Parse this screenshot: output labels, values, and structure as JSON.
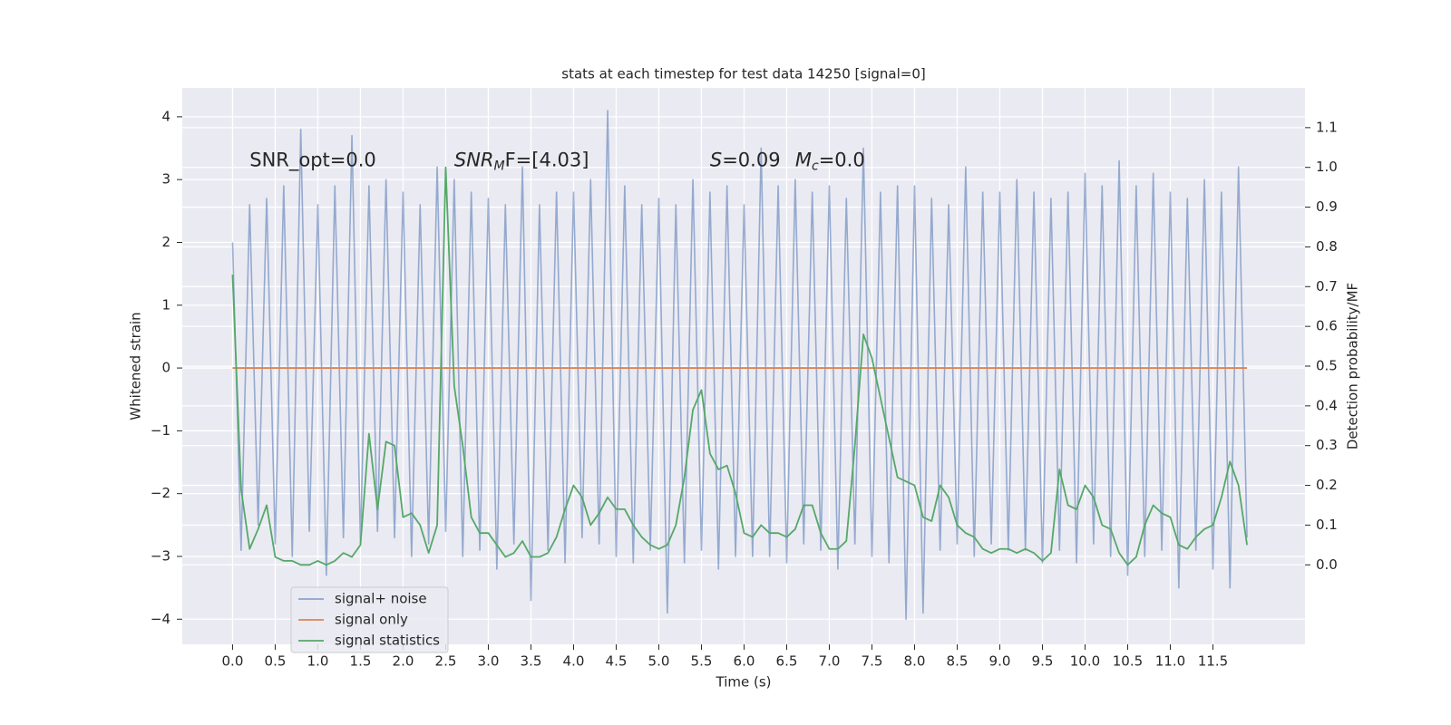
{
  "chart_data": {
    "type": "line",
    "title": "stats at each timestep for test data 14250 [signal=0]",
    "x_label": "Time (s)",
    "y_label": "Whitened strain",
    "y2_label": "Detection probability/MF",
    "annotations": [
      "SNR_opt=0.0",
      {
        "base": "SNR",
        "sub": "M",
        "after": "F=[4.03]"
      },
      {
        "base": "S",
        "after": "=0.09"
      },
      {
        "base": "M",
        "sub": "c",
        "after": "=0.0"
      }
    ],
    "xlim": [
      -0.59,
      12.58
    ],
    "ylim": [
      -4.4,
      4.46
    ],
    "y2lim": [
      -0.2,
      1.2
    ],
    "xticks": [
      {
        "value": 0,
        "label": "0.0"
      },
      0.5,
      {
        "value": 1,
        "label": "1.0"
      },
      1.5,
      {
        "value": 2,
        "label": "2.0"
      },
      2.5,
      {
        "value": 3,
        "label": "3.0"
      },
      3.5,
      {
        "value": 4,
        "label": "4.0"
      },
      4.5,
      {
        "value": 5,
        "label": "5.0"
      },
      5.5,
      {
        "value": 6,
        "label": "6.0"
      },
      6.5,
      {
        "value": 7,
        "label": "7.0"
      },
      7.5,
      {
        "value": 8,
        "label": "8.0"
      },
      8.5,
      {
        "value": 9,
        "label": "9.0"
      },
      9.5,
      {
        "value": 10,
        "label": "10.0"
      },
      10.5,
      {
        "value": 11,
        "label": "11.0"
      },
      11.5
    ],
    "yticks": [
      {
        "value": -4,
        "label": "−4"
      },
      {
        "value": -3,
        "label": "−3"
      },
      {
        "value": -2,
        "label": "−2"
      },
      {
        "value": -1,
        "label": "−1"
      },
      0,
      1,
      2,
      3,
      4
    ],
    "y2ticks": [
      {
        "value": 0,
        "label": "0.0"
      },
      0.1,
      0.2,
      0.3,
      0.4,
      0.5,
      0.6,
      0.7,
      0.8,
      0.9,
      {
        "value": 1,
        "label": "1.0"
      },
      1.1
    ],
    "grid": true,
    "legend": "lower left",
    "x": [
      0.0,
      0.1,
      0.2,
      0.3,
      0.4,
      0.5,
      0.6,
      0.7,
      0.8,
      0.9,
      1.0,
      1.1,
      1.2,
      1.3,
      1.4,
      1.5,
      1.6,
      1.7,
      1.8,
      1.9,
      2.0,
      2.1,
      2.2,
      2.3,
      2.4,
      2.5,
      2.6,
      2.7,
      2.8,
      2.9,
      3.0,
      3.1,
      3.2,
      3.3,
      3.4,
      3.5,
      3.6,
      3.7,
      3.8,
      3.9,
      4.0,
      4.1,
      4.2,
      4.3,
      4.4,
      4.5,
      4.6,
      4.7,
      4.8,
      4.9,
      5.0,
      5.1,
      5.2,
      5.3,
      5.4,
      5.5,
      5.6,
      5.7,
      5.8,
      5.9,
      6.0,
      6.1,
      6.2,
      6.3,
      6.4,
      6.5,
      6.6,
      6.7,
      6.8,
      6.9,
      7.0,
      7.1,
      7.2,
      7.3,
      7.4,
      7.5,
      7.6,
      7.7,
      7.8,
      7.9,
      8.0,
      8.1,
      8.2,
      8.3,
      8.4,
      8.5,
      8.6,
      8.7,
      8.8,
      8.9,
      9.0,
      9.1,
      9.2,
      9.3,
      9.4,
      9.5,
      9.6,
      9.7,
      9.8,
      9.9,
      10.0,
      10.1,
      10.2,
      10.3,
      10.4,
      10.5,
      10.6,
      10.7,
      10.8,
      10.9,
      11.0,
      11.1,
      11.2,
      11.3,
      11.4,
      11.5,
      11.6,
      11.7,
      11.8,
      11.9
    ],
    "series": [
      {
        "name": "signal+ noise",
        "color": "#4c72b0",
        "axis": "y",
        "values": [
          2.0,
          -2.9,
          2.6,
          -2.5,
          2.7,
          -2.8,
          2.9,
          -3.0,
          3.8,
          -2.6,
          2.6,
          -3.3,
          2.9,
          -2.7,
          3.7,
          -2.8,
          2.9,
          -2.6,
          3.0,
          -2.7,
          2.8,
          -3.0,
          2.6,
          -2.8,
          3.2,
          -2.6,
          3.0,
          -3.0,
          2.8,
          -2.9,
          2.7,
          -3.2,
          2.6,
          -2.8,
          3.2,
          -3.7,
          2.6,
          -2.9,
          2.8,
          -3.1,
          2.8,
          -2.7,
          3.0,
          -2.8,
          4.1,
          -3.0,
          2.9,
          -3.1,
          2.6,
          -2.9,
          2.7,
          -3.9,
          2.6,
          -3.1,
          3.0,
          -2.9,
          2.8,
          -3.2,
          2.9,
          -3.0,
          2.6,
          -3.0,
          3.5,
          -3.0,
          2.9,
          -3.1,
          3.0,
          -2.8,
          2.8,
          -2.9,
          2.9,
          -3.2,
          2.7,
          -2.8,
          3.5,
          -3.0,
          2.8,
          -3.1,
          2.9,
          -4.0,
          2.9,
          -3.9,
          2.7,
          -2.9,
          2.6,
          -2.8,
          3.2,
          -3.0,
          2.8,
          -2.8,
          2.8,
          -2.9,
          3.0,
          -2.9,
          2.8,
          -3.1,
          2.7,
          -2.9,
          2.8,
          -3.1,
          3.1,
          -2.8,
          2.9,
          -3.0,
          3.3,
          -3.3,
          2.9,
          -3.0,
          3.1,
          -2.9,
          2.8,
          -3.5,
          2.7,
          -2.9,
          3.0,
          -3.2,
          2.8,
          -3.5,
          3.2,
          -2.7
        ]
      },
      {
        "name": "signal only",
        "color": "#dd8452",
        "axis": "y",
        "values": [
          0,
          0,
          0,
          0,
          0,
          0,
          0,
          0,
          0,
          0,
          0,
          0,
          0,
          0,
          0,
          0,
          0,
          0,
          0,
          0,
          0,
          0,
          0,
          0,
          0,
          0,
          0,
          0,
          0,
          0,
          0,
          0,
          0,
          0,
          0,
          0,
          0,
          0,
          0,
          0,
          0,
          0,
          0,
          0,
          0,
          0,
          0,
          0,
          0,
          0,
          0,
          0,
          0,
          0,
          0,
          0,
          0,
          0,
          0,
          0,
          0,
          0,
          0,
          0,
          0,
          0,
          0,
          0,
          0,
          0,
          0,
          0,
          0,
          0,
          0,
          0,
          0,
          0,
          0,
          0,
          0,
          0,
          0,
          0,
          0,
          0,
          0,
          0,
          0,
          0,
          0,
          0,
          0,
          0,
          0,
          0,
          0,
          0,
          0,
          0,
          0,
          0,
          0,
          0,
          0,
          0,
          0,
          0,
          0,
          0,
          0,
          0,
          0,
          0,
          0,
          0,
          0,
          0,
          0,
          0
        ]
      },
      {
        "name": "signal statistics",
        "color": "#55a868",
        "axis": "y2",
        "values": [
          0.73,
          0.19,
          0.04,
          0.09,
          0.15,
          0.02,
          0.01,
          0.01,
          0.0,
          0.0,
          0.01,
          0.0,
          0.01,
          0.03,
          0.02,
          0.05,
          0.33,
          0.14,
          0.31,
          0.3,
          0.12,
          0.13,
          0.1,
          0.03,
          0.1,
          1.0,
          0.45,
          0.3,
          0.12,
          0.08,
          0.08,
          0.05,
          0.02,
          0.03,
          0.06,
          0.02,
          0.02,
          0.03,
          0.07,
          0.14,
          0.2,
          0.17,
          0.1,
          0.13,
          0.17,
          0.14,
          0.14,
          0.1,
          0.07,
          0.05,
          0.04,
          0.05,
          0.1,
          0.22,
          0.39,
          0.44,
          0.28,
          0.24,
          0.25,
          0.18,
          0.08,
          0.07,
          0.1,
          0.08,
          0.08,
          0.07,
          0.09,
          0.15,
          0.15,
          0.08,
          0.04,
          0.04,
          0.06,
          0.3,
          0.58,
          0.52,
          0.42,
          0.32,
          0.22,
          0.21,
          0.2,
          0.12,
          0.11,
          0.2,
          0.17,
          0.1,
          0.08,
          0.07,
          0.04,
          0.03,
          0.04,
          0.04,
          0.03,
          0.04,
          0.03,
          0.01,
          0.03,
          0.24,
          0.15,
          0.14,
          0.2,
          0.17,
          0.1,
          0.09,
          0.03,
          0.0,
          0.02,
          0.1,
          0.15,
          0.13,
          0.12,
          0.05,
          0.04,
          0.07,
          0.09,
          0.1,
          0.17,
          0.26,
          0.2,
          0.05
        ]
      }
    ]
  }
}
